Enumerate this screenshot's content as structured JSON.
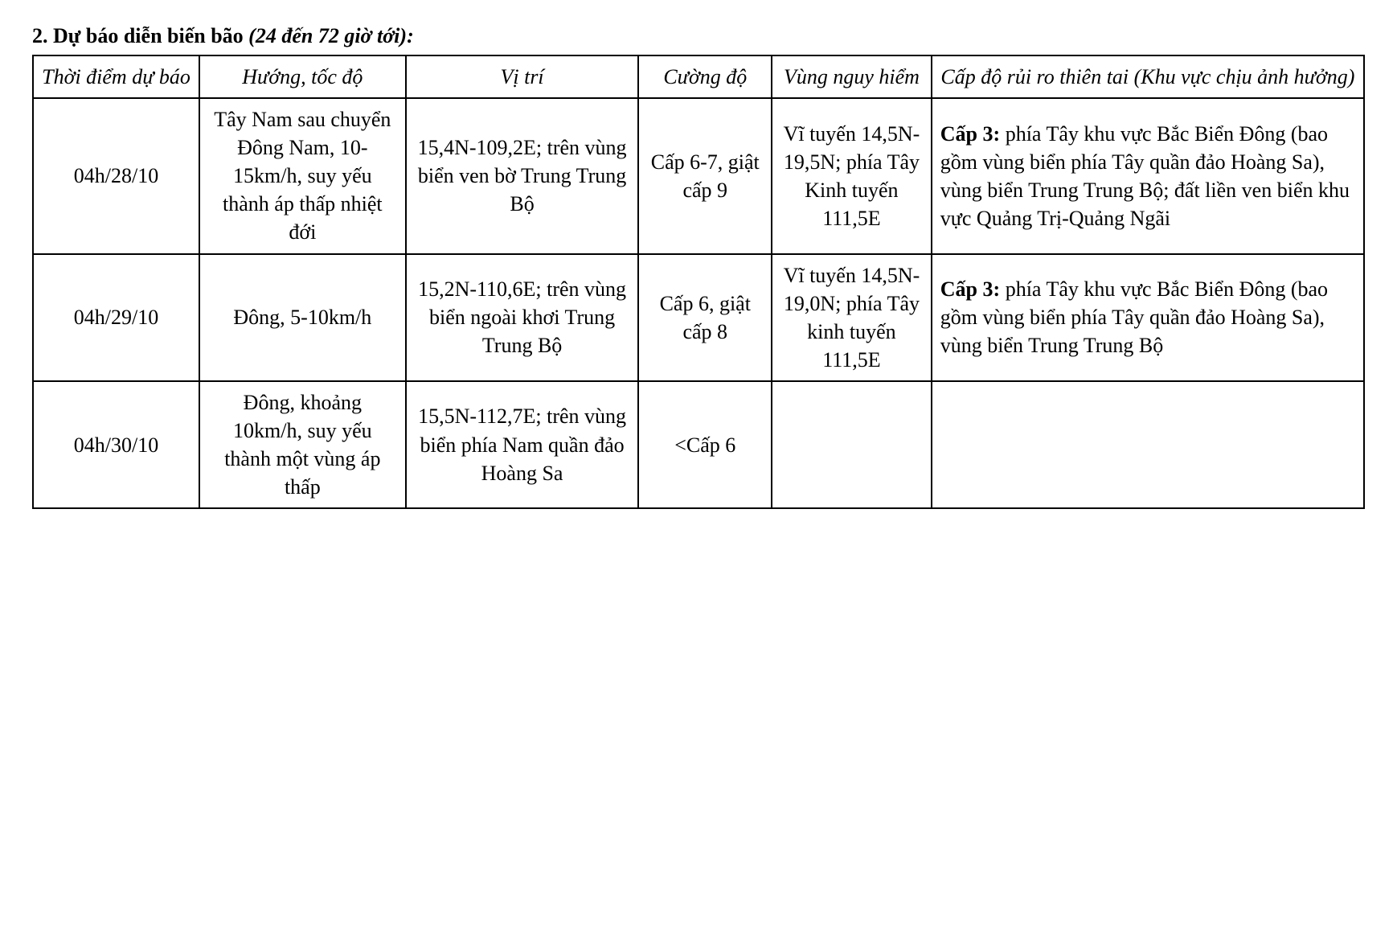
{
  "heading": {
    "prefix": "2. Dự báo diễn biến bão ",
    "italic": "(24 đến 72 giờ tới):"
  },
  "table": {
    "headers": {
      "time": "Thời điểm dự báo",
      "direction": "Hướng, tốc độ",
      "position": "Vị trí",
      "intensity": "Cường độ",
      "danger": "Vùng nguy hiểm",
      "risk": "Cấp độ rủi ro thiên tai (Khu vực chịu ảnh hưởng)"
    },
    "rows": [
      {
        "time": "04h/28/10",
        "direction": "Tây Nam sau chuyển Đông Nam, 10-15km/h, suy yếu thành áp thấp nhiệt đới",
        "position": "15,4N-109,2E; trên vùng biển ven bờ Trung Trung Bộ",
        "intensity": "Cấp 6-7, giật cấp 9",
        "danger": "Vĩ tuyến 14,5N-19,5N; phía Tây Kinh tuyến 111,5E",
        "risk_bold": "Cấp 3:",
        "risk_rest": " phía Tây khu vực Bắc Biển Đông (bao gồm vùng biển phía Tây quần đảo Hoàng Sa), vùng biển Trung Trung Bộ; đất liền ven biển khu vực Quảng Trị-Quảng Ngãi"
      },
      {
        "time": "04h/29/10",
        "direction": "Đông, 5-10km/h",
        "position": "15,2N-110,6E; trên vùng biển ngoài khơi Trung Trung Bộ",
        "intensity": "Cấp 6, giật cấp 8",
        "danger": "Vĩ tuyến 14,5N-19,0N; phía Tây kinh tuyến 111,5E",
        "risk_bold": "Cấp 3:",
        "risk_rest": " phía Tây khu vực Bắc Biển Đông (bao gồm vùng biển phía Tây quần đảo Hoàng Sa), vùng biển Trung Trung Bộ"
      },
      {
        "time": "04h/30/10",
        "direction": "Đông, khoảng 10km/h, suy yếu thành một vùng áp thấp",
        "position": "15,5N-112,7E; trên vùng biển phía Nam quần đảo Hoàng Sa",
        "intensity": "<Cấp 6",
        "danger": "",
        "risk_bold": "",
        "risk_rest": ""
      }
    ]
  }
}
